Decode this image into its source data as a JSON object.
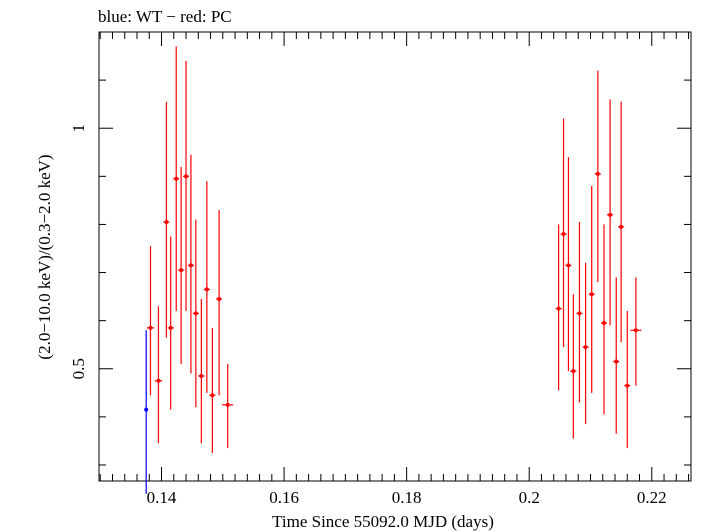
{
  "chart_data": {
    "type": "scatter",
    "title": "blue: WT − red: PC",
    "xlabel": "Time Since 55092.0 MJD (days)",
    "ylabel": "(2.0−10.0 keV)/(0.3−2.0 keV)",
    "xlim": [
      0.1298,
      0.2264
    ],
    "ylim": [
      0.2667,
      1.2
    ],
    "x_ticks": [
      {
        "value": 0.14,
        "label": "0.14"
      },
      {
        "value": 0.16,
        "label": "0.16"
      },
      {
        "value": 0.18,
        "label": "0.18"
      },
      {
        "value": 0.2,
        "label": "0.2"
      },
      {
        "value": 0.22,
        "label": "0.22"
      }
    ],
    "y_ticks": [
      {
        "value": 0.5,
        "label": "0.5"
      },
      {
        "value": 1.0,
        "label": "1"
      }
    ],
    "grid": false,
    "colors": {
      "WT": "#0000ff",
      "PC": "#ff0000"
    },
    "series": [
      {
        "name": "WT",
        "color": "#0000ff",
        "points": [
          {
            "x": 0.1375,
            "y": 0.415,
            "xerr": 0.0,
            "ylo": 0.24,
            "yhi": 0.58
          }
        ]
      },
      {
        "name": "PC",
        "color": "#ff0000",
        "points": [
          {
            "x": 0.1382,
            "y": 0.585,
            "xerr": 0.0006,
            "ylo": 0.445,
            "yhi": 0.755
          },
          {
            "x": 0.1395,
            "y": 0.475,
            "xerr": 0.0006,
            "ylo": 0.345,
            "yhi": 0.63
          },
          {
            "x": 0.1408,
            "y": 0.805,
            "xerr": 0.0005,
            "ylo": 0.565,
            "yhi": 1.055
          },
          {
            "x": 0.1415,
            "y": 0.585,
            "xerr": 0.0005,
            "ylo": 0.415,
            "yhi": 0.775
          },
          {
            "x": 0.1424,
            "y": 0.895,
            "xerr": 0.0005,
            "ylo": 0.62,
            "yhi": 1.17
          },
          {
            "x": 0.1432,
            "y": 0.705,
            "xerr": 0.0005,
            "ylo": 0.51,
            "yhi": 0.92
          },
          {
            "x": 0.144,
            "y": 0.9,
            "xerr": 0.0005,
            "ylo": 0.62,
            "yhi": 1.14
          },
          {
            "x": 0.1448,
            "y": 0.715,
            "xerr": 0.0005,
            "ylo": 0.49,
            "yhi": 0.945
          },
          {
            "x": 0.1456,
            "y": 0.615,
            "xerr": 0.0005,
            "ylo": 0.42,
            "yhi": 0.81
          },
          {
            "x": 0.1465,
            "y": 0.485,
            "xerr": 0.0005,
            "ylo": 0.345,
            "yhi": 0.645
          },
          {
            "x": 0.1474,
            "y": 0.665,
            "xerr": 0.0005,
            "ylo": 0.45,
            "yhi": 0.89
          },
          {
            "x": 0.1483,
            "y": 0.445,
            "xerr": 0.0005,
            "ylo": 0.325,
            "yhi": 0.585
          },
          {
            "x": 0.1494,
            "y": 0.645,
            "xerr": 0.0005,
            "ylo": 0.445,
            "yhi": 0.83
          },
          {
            "x": 0.1508,
            "y": 0.425,
            "xerr": 0.0009,
            "ylo": 0.335,
            "yhi": 0.51
          },
          {
            "x": 0.2048,
            "y": 0.625,
            "xerr": 0.0005,
            "ylo": 0.455,
            "yhi": 0.8
          },
          {
            "x": 0.2056,
            "y": 0.78,
            "xerr": 0.0005,
            "ylo": 0.545,
            "yhi": 1.02
          },
          {
            "x": 0.2064,
            "y": 0.715,
            "xerr": 0.0005,
            "ylo": 0.495,
            "yhi": 0.94
          },
          {
            "x": 0.2072,
            "y": 0.495,
            "xerr": 0.0005,
            "ylo": 0.355,
            "yhi": 0.655
          },
          {
            "x": 0.2082,
            "y": 0.615,
            "xerr": 0.0005,
            "ylo": 0.43,
            "yhi": 0.805
          },
          {
            "x": 0.2092,
            "y": 0.545,
            "xerr": 0.0005,
            "ylo": 0.385,
            "yhi": 0.72
          },
          {
            "x": 0.2102,
            "y": 0.655,
            "xerr": 0.0005,
            "ylo": 0.45,
            "yhi": 0.88
          },
          {
            "x": 0.2112,
            "y": 0.905,
            "xerr": 0.0005,
            "ylo": 0.68,
            "yhi": 1.12
          },
          {
            "x": 0.2122,
            "y": 0.595,
            "xerr": 0.0005,
            "ylo": 0.405,
            "yhi": 0.8
          },
          {
            "x": 0.2132,
            "y": 0.82,
            "xerr": 0.0005,
            "ylo": 0.59,
            "yhi": 1.06
          },
          {
            "x": 0.2142,
            "y": 0.515,
            "xerr": 0.0005,
            "ylo": 0.365,
            "yhi": 0.69
          },
          {
            "x": 0.215,
            "y": 0.795,
            "xerr": 0.0005,
            "ylo": 0.555,
            "yhi": 1.055
          },
          {
            "x": 0.216,
            "y": 0.465,
            "xerr": 0.0005,
            "ylo": 0.335,
            "yhi": 0.62
          },
          {
            "x": 0.2174,
            "y": 0.58,
            "xerr": 0.0009,
            "ylo": 0.465,
            "yhi": 0.69
          }
        ]
      }
    ]
  }
}
